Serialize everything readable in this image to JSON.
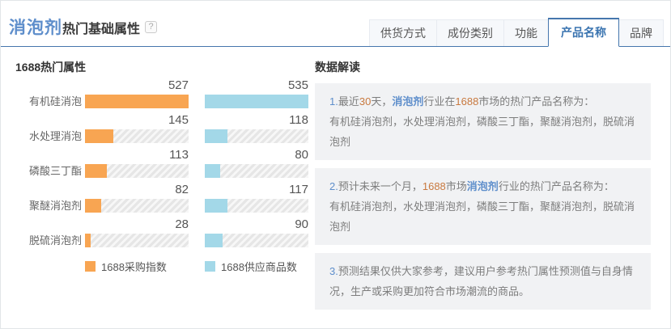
{
  "header": {
    "keyword": "消泡剂",
    "title_suffix": "热门基础属性",
    "help_icon": "?",
    "tabs": [
      {
        "id": "supply-method",
        "label": "供货方式",
        "active": false
      },
      {
        "id": "ingredient-category",
        "label": "成份类别",
        "active": false
      },
      {
        "id": "function",
        "label": "功能",
        "active": false
      },
      {
        "id": "product-name",
        "label": "产品名称",
        "active": true
      },
      {
        "id": "brand",
        "label": "品牌",
        "active": false
      }
    ]
  },
  "chart": {
    "section_title": "1688热门属性",
    "chart_data": {
      "type": "bar",
      "orientation": "horizontal",
      "title": "1688热门属性",
      "categories": [
        "有机硅消泡",
        "水处理消泡",
        "磷酸三丁酯",
        "聚醚消泡剂",
        "脱硫消泡剂"
      ],
      "series": [
        {
          "name": "1688采购指数",
          "color": "#F8A552",
          "values": [
            527,
            145,
            113,
            82,
            28
          ],
          "axis_max": 527
        },
        {
          "name": "1688供应商品数",
          "color": "#A3D8E8",
          "values": [
            535,
            118,
            80,
            117,
            90
          ],
          "axis_max": 535
        }
      ],
      "legend_position": "bottom",
      "grid": false,
      "value_labels": "above-bar-right"
    }
  },
  "insights": {
    "section_title": "数据解读",
    "items": [
      {
        "lines": [
          [
            {
              "t": "1.",
              "c": "num"
            },
            {
              "t": "最近",
              "c": ""
            },
            {
              "t": "30",
              "c": "orange"
            },
            {
              "t": "天，",
              "c": ""
            },
            {
              "t": "消泡剂",
              "c": "keyword"
            },
            {
              "t": "行业在",
              "c": ""
            },
            {
              "t": "1688",
              "c": "orange"
            },
            {
              "t": "市场的热门产品名称为：",
              "c": ""
            }
          ],
          [
            {
              "t": "有机硅消泡剂，水处理消泡剂，磷酸三丁酯，聚醚消泡剂，脱硫消泡剂",
              "c": ""
            }
          ]
        ]
      },
      {
        "lines": [
          [
            {
              "t": "2.",
              "c": "num"
            },
            {
              "t": "预计未来一个月，",
              "c": ""
            },
            {
              "t": "1688",
              "c": "orange"
            },
            {
              "t": "市场",
              "c": ""
            },
            {
              "t": "消泡剂",
              "c": "keyword"
            },
            {
              "t": "行业的热门产品名称为：",
              "c": ""
            }
          ],
          [
            {
              "t": "有机硅消泡剂，水处理消泡剂，磷酸三丁酯，聚醚消泡剂，脱硫消泡剂",
              "c": ""
            }
          ]
        ]
      },
      {
        "lines": [
          [
            {
              "t": "3.",
              "c": "num"
            },
            {
              "t": "预测结果仅供大家参考，建议用户参考热门属性预测值与自身情况，生产或采购更加符合市场潮流的商品。",
              "c": ""
            }
          ]
        ]
      }
    ]
  },
  "colors": {
    "accent_blue": "#4576ad",
    "keyword_blue": "#5e8ecb",
    "tab_active_blue": "#3a74b0",
    "bar_orange": "#F8A552",
    "bar_cyan": "#A3D8E8",
    "number_orange": "#c8793f",
    "box_bg": "#f1f2f4"
  }
}
